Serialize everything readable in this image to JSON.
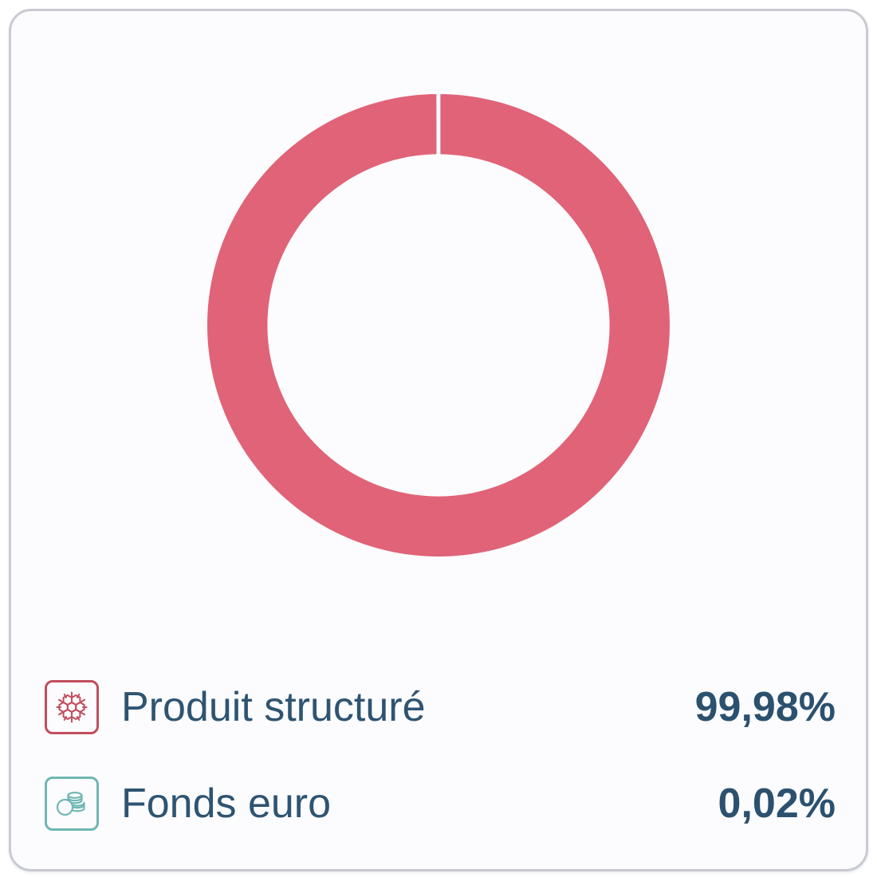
{
  "theme": {
    "card_bg": "#FCFCFE",
    "card_border_color": "#C9CAD2",
    "text_color": "#2E5472",
    "value_color": "#2B516F",
    "slice_gap_color": "#FCFCFE"
  },
  "chart_data": {
    "type": "pie",
    "donut": true,
    "inner_radius_ratio": 0.74,
    "start_angle_deg": 0,
    "categories": [
      "Produit structuré",
      "Fonds euro"
    ],
    "values": [
      99.98,
      0.02
    ],
    "unit": "%",
    "colors": [
      "#E06377",
      "#6FB7B3"
    ],
    "title": "",
    "legend_position": "bottom"
  },
  "legend": {
    "items": [
      {
        "label": "Produit structuré",
        "value": "99,98%",
        "icon": "structured-product-icon",
        "color": "#C24D5D"
      },
      {
        "label": "Fonds euro",
        "value": "0,02%",
        "icon": "euro-fund-coins-icon",
        "color": "#6FB7B3"
      }
    ]
  }
}
